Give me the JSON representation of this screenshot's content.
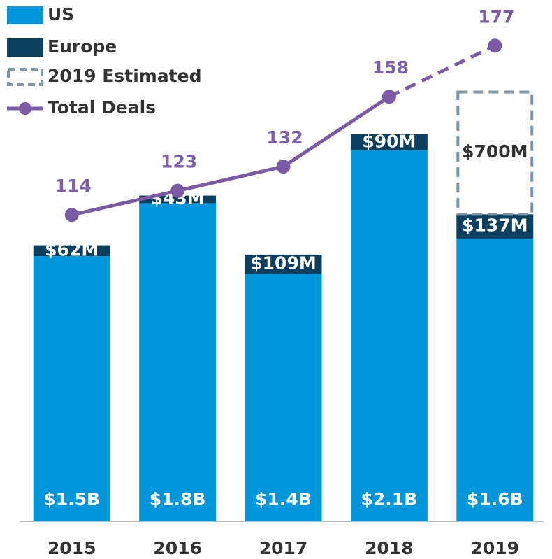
{
  "chart_data": {
    "type": "bar",
    "categories": [
      "2015",
      "2016",
      "2017",
      "2018",
      "2019"
    ],
    "series": [
      {
        "name": "US",
        "color": "#0096dc",
        "values": [
          1500,
          1800,
          1400,
          2100,
          1600
        ],
        "value_labels": [
          "$1.5B",
          "$1.8B",
          "$1.4B",
          "$2.1B",
          "$1.6B"
        ]
      },
      {
        "name": "Europe",
        "color": "#0b3f5f",
        "values": [
          62,
          43,
          109,
          90,
          137
        ],
        "value_labels": [
          "$62M",
          "$43M",
          "$109M",
          "$90M",
          "$137M"
        ]
      },
      {
        "name": "2019 Estimated",
        "color": "#7f96a8",
        "values": [
          null,
          null,
          null,
          null,
          700
        ],
        "value_labels": [
          null,
          null,
          null,
          null,
          "$700M"
        ]
      },
      {
        "name": "Total Deals",
        "color": "#7b5aa6",
        "axis": "y2",
        "values": [
          114,
          123,
          132,
          158,
          177
        ]
      }
    ],
    "ylim": [
      0,
      2950
    ],
    "y2lim": [
      0,
      194
    ]
  }
}
